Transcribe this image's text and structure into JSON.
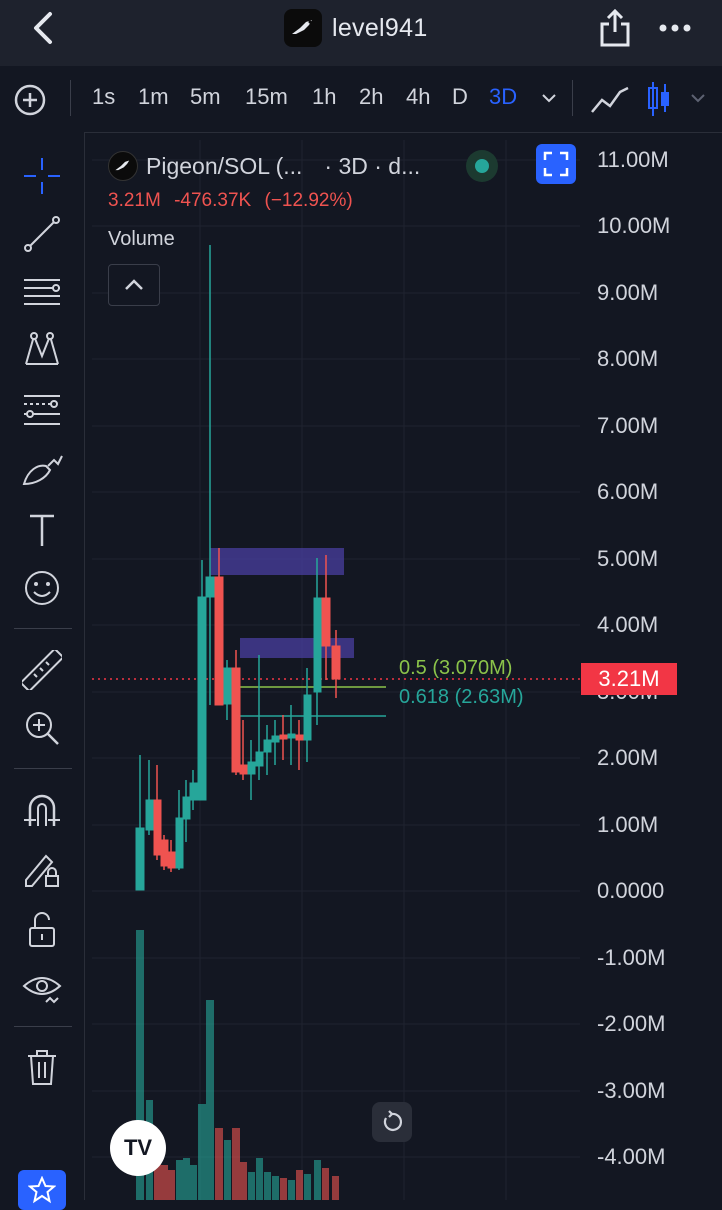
{
  "header": {
    "title": "level941"
  },
  "timeframes": {
    "items": [
      "1s",
      "1m",
      "5m",
      "15m",
      "1h",
      "2h",
      "4h",
      "D",
      "3D"
    ],
    "active": "3D"
  },
  "legend": {
    "pair": "Pigeon/SOL (...",
    "meta": "· 3D · d...",
    "ohlc": {
      "close": "3.21M",
      "change": "-476.37K",
      "change_pct": "(−12.92%)"
    },
    "indicator": "Volume"
  },
  "price_axis": {
    "labels": [
      "11.00M",
      "10.00M",
      "9.00M",
      "8.00M",
      "7.00M",
      "6.00M",
      "5.00M",
      "4.00M",
      "3.00M",
      "2.00M",
      "1.00M",
      "0.0000",
      "-1.00M",
      "-2.00M",
      "-3.00M",
      "-4.00M"
    ],
    "current_price": "3.21M"
  },
  "fib_levels": [
    {
      "label": "0.5 (3.070M)",
      "color": "#8bc34a"
    },
    {
      "label": "0.618 (2.63M)",
      "color": "#26a69a"
    }
  ],
  "colors": {
    "up": "#26a69a",
    "down": "#ef5350",
    "accent": "#2962ff",
    "zone": "#4a3fa0"
  },
  "tv_logo": "TV"
}
